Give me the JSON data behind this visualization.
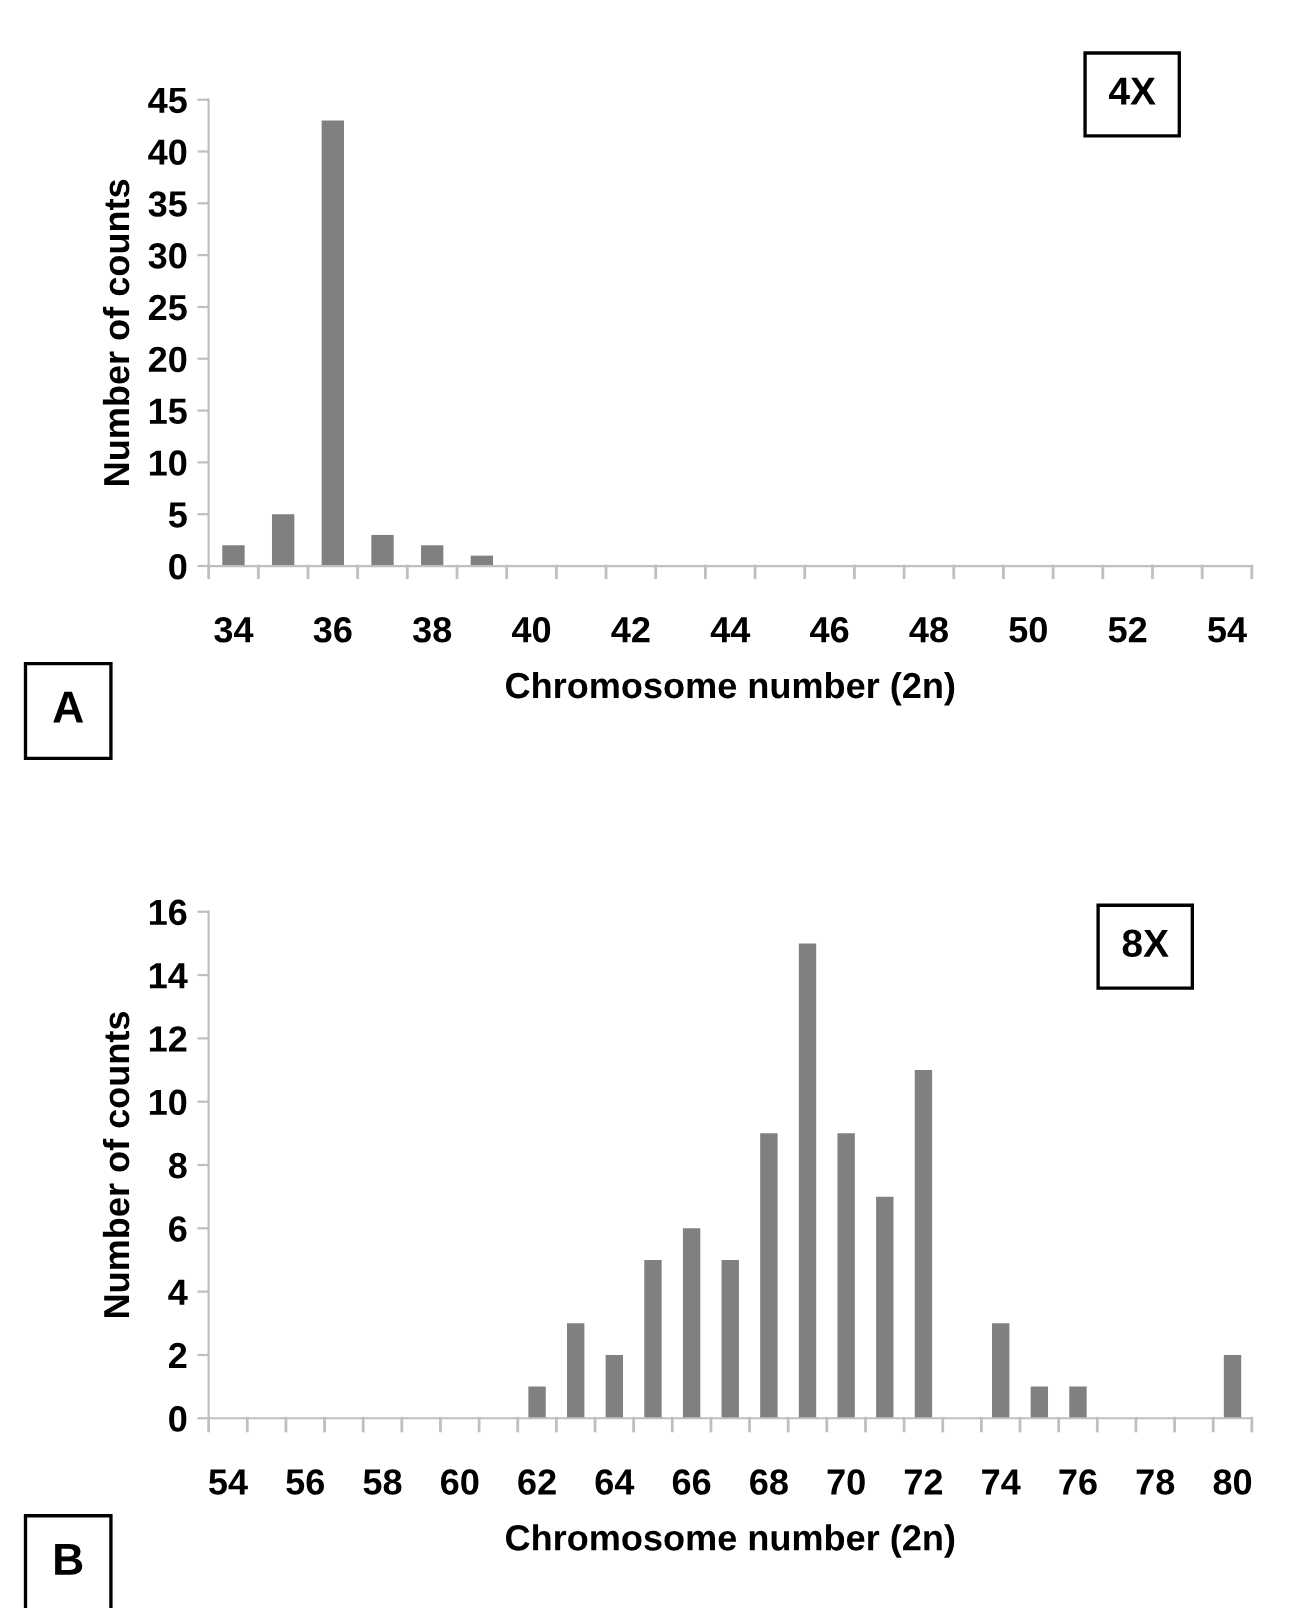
{
  "chart_data": [
    {
      "type": "bar",
      "xlabel": "Chromosome number (2n)",
      "ylabel": "Number of counts",
      "categories": [
        "34",
        null,
        "36",
        null,
        "38",
        null,
        "40",
        null,
        "42",
        null,
        "44",
        null,
        "46",
        null,
        "48",
        null,
        "50",
        null,
        "52",
        null,
        "54"
      ],
      "values": [
        2,
        5,
        43,
        3,
        2,
        1,
        0,
        0,
        0,
        0,
        0,
        0,
        0,
        0,
        0,
        0,
        0,
        0,
        0,
        0,
        0
      ],
      "color": "#808080",
      "ylim": [
        0,
        45
      ],
      "yticks": [
        0,
        5,
        10,
        15,
        20,
        25,
        30,
        35,
        40,
        45
      ],
      "grid": false,
      "annotations": [
        "4X",
        "A"
      ]
    },
    {
      "type": "bar",
      "xlabel": "Chromosome number (2n)",
      "ylabel": "Number of counts",
      "categories": [
        "54",
        null,
        "56",
        null,
        "58",
        null,
        "60",
        null,
        "62",
        null,
        "64",
        null,
        "66",
        null,
        "68",
        null,
        "70",
        null,
        "72",
        null,
        "74",
        null,
        "76",
        null,
        "78",
        null,
        "80"
      ],
      "values": [
        0,
        0,
        0,
        0,
        0,
        0,
        0,
        0,
        1,
        3,
        2,
        5,
        6,
        5,
        9,
        15,
        9,
        7,
        11,
        0,
        3,
        1,
        1,
        0,
        0,
        0,
        2
      ],
      "color": "#808080",
      "ylim": [
        0,
        16
      ],
      "yticks": [
        0,
        2,
        4,
        6,
        8,
        10,
        12,
        14,
        16
      ],
      "grid": false,
      "annotations": [
        "8X",
        "B"
      ]
    }
  ]
}
